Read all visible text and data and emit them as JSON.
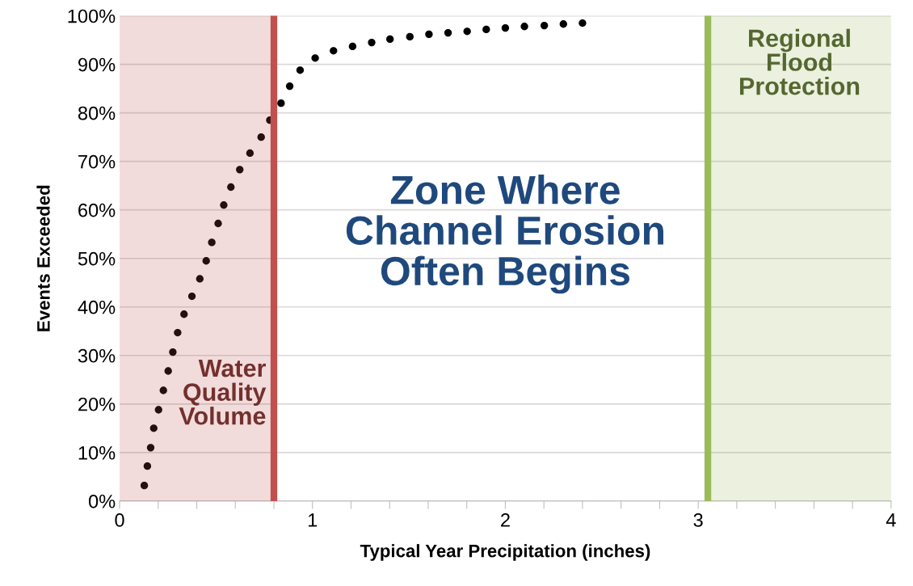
{
  "chart_data": {
    "type": "scatter",
    "xlabel": "Typical Year Precipitation (inches)",
    "ylabel": "Events Exceeded",
    "series": [
      {
        "color": "#000000",
        "x": [
          0.128,
          0.144,
          0.161,
          0.177,
          0.202,
          0.227,
          0.252,
          0.276,
          0.301,
          0.334,
          0.375,
          0.416,
          0.449,
          0.478,
          0.511,
          0.54,
          0.577,
          0.623,
          0.676,
          0.734,
          0.779,
          0.837,
          0.882,
          0.936,
          1.014,
          1.109,
          1.208,
          1.307,
          1.402,
          1.505,
          1.604,
          1.703,
          1.802,
          1.901,
          2.0,
          2.099,
          2.202,
          2.301,
          2.4
        ],
        "values": [
          3.2,
          7.2,
          11.0,
          15.0,
          18.8,
          22.8,
          26.8,
          30.7,
          34.7,
          38.5,
          42.2,
          45.8,
          49.5,
          53.3,
          57.2,
          61.0,
          64.7,
          68.3,
          71.7,
          75.0,
          78.5,
          82.0,
          85.5,
          88.8,
          91.3,
          92.8,
          93.7,
          94.5,
          95.2,
          95.7,
          96.2,
          96.5,
          96.8,
          97.2,
          97.5,
          97.8,
          98.0,
          98.3,
          98.5
        ]
      }
    ],
    "marker": "circle",
    "xlim": [
      0,
      4
    ],
    "xticks": [
      0,
      {
        "value": 0.2,
        "label": null
      },
      {
        "value": 0.4,
        "label": null
      },
      {
        "value": 0.6,
        "label": null
      },
      {
        "value": 0.8,
        "label": null
      },
      1,
      {
        "value": 1.2,
        "label": null
      },
      {
        "value": 1.4,
        "label": null
      },
      {
        "value": 1.6,
        "label": null
      },
      {
        "value": 1.8,
        "label": null
      },
      2,
      {
        "value": 2.2,
        "label": null
      },
      {
        "value": 2.4,
        "label": null
      },
      {
        "value": 2.6,
        "label": null
      },
      {
        "value": 2.8,
        "label": null
      },
      3,
      {
        "value": 3.2,
        "label": null
      },
      {
        "value": 3.4,
        "label": null
      },
      {
        "value": 3.6,
        "label": null
      },
      {
        "value": 3.8,
        "label": null
      },
      4
    ],
    "ylim": [
      0,
      100
    ],
    "yticks": [
      {
        "value": 0,
        "label": "0%"
      },
      {
        "value": 10,
        "label": "10%"
      },
      {
        "value": 20,
        "label": "20%"
      },
      {
        "value": 30,
        "label": "30%"
      },
      {
        "value": 40,
        "label": "40%"
      },
      {
        "value": 50,
        "label": "50%"
      },
      {
        "value": 60,
        "label": "60%"
      },
      {
        "value": 70,
        "label": "70%"
      },
      {
        "value": 80,
        "label": "80%"
      },
      {
        "value": 90,
        "label": "90%"
      },
      {
        "value": 100,
        "label": "100%"
      }
    ],
    "grid": "y",
    "bands": [
      {
        "axis": "x",
        "from": 0,
        "to": 0.8,
        "label": "Water\nQuality\nVolume",
        "color": "#c0504d"
      },
      {
        "axis": "x",
        "from": 3.05,
        "to": 4,
        "label": "Regional\nFlood\nProtection",
        "color": "#9bbb59"
      }
    ],
    "ref_lines": [
      {
        "axis": "x",
        "value": 0.8,
        "color": "#c0504d"
      },
      {
        "axis": "x",
        "value": 3.05,
        "color": "#9bbb59"
      }
    ],
    "annotations": [
      "Zone Where\nChannel Erosion\nOften Begins"
    ]
  }
}
